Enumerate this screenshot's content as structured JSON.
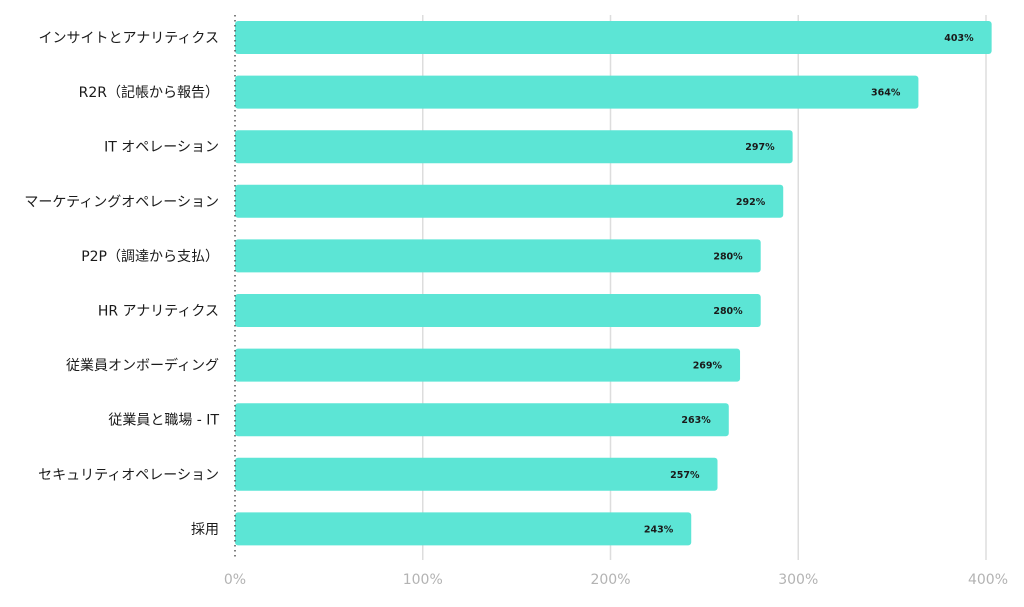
{
  "chart_data": {
    "type": "bar",
    "orientation": "horizontal",
    "categories": [
      "インサイトとアナリティクス",
      "R2R（記帳から報告）",
      "IT オペレーション",
      "マーケティングオペレーション",
      "P2P（調達から支払）",
      "HR アナリティクス",
      "従業員オンボーディング",
      "従業員と職場 - IT",
      "セキュリティオペレーション",
      "採用"
    ],
    "values": [
      403,
      364,
      297,
      292,
      280,
      280,
      269,
      263,
      257,
      243
    ],
    "value_labels": [
      "403%",
      "364%",
      "297%",
      "292%",
      "280%",
      "280%",
      "269%",
      "263%",
      "257%",
      "243%"
    ],
    "xlim": [
      0,
      400
    ],
    "ticks": [
      0,
      100,
      200,
      300,
      400
    ],
    "tick_labels": [
      "0%",
      "100%",
      "200%",
      "300%",
      "400%"
    ],
    "title": "",
    "xlabel": "",
    "ylabel": "",
    "grid": "vertical",
    "bar_color": "#5ce5d5",
    "grid_color": "#dddddd",
    "tick_label_color": "#b3b3b3",
    "category_label_color": "#1a1a1a"
  }
}
